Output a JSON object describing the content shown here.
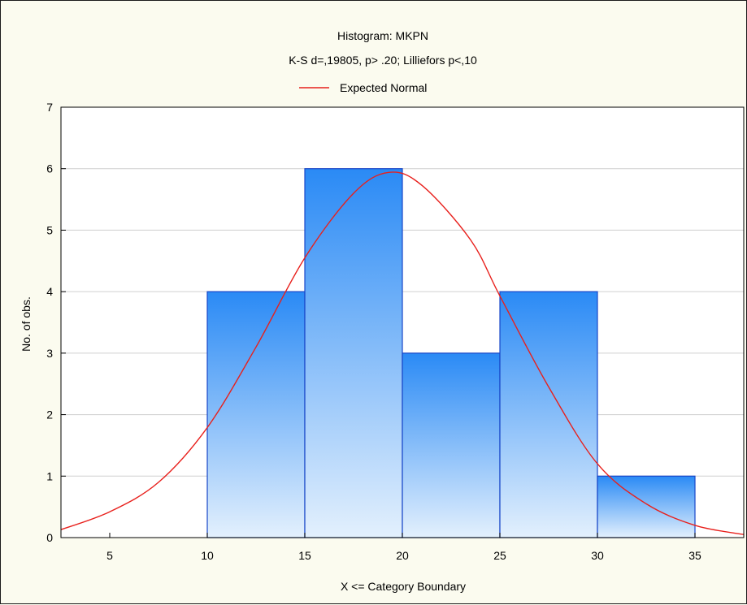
{
  "chart_data": {
    "type": "bar",
    "title": "Histogram: MKPN",
    "subtitle": "K-S d=,19805, p> .20; Lilliefors p<,10",
    "legend": [
      {
        "name": "Expected Normal",
        "color": "#e8201c",
        "marker": "line"
      }
    ],
    "legend_placement": "top-center",
    "xlabel": "X <= Category Boundary",
    "ylabel": "No. of obs.",
    "xlim": [
      2.5,
      37.5
    ],
    "ylim": [
      0,
      7
    ],
    "x_ticks": [
      5,
      10,
      15,
      20,
      25,
      30,
      35
    ],
    "y_ticks": [
      0,
      1,
      2,
      3,
      4,
      5,
      6,
      7
    ],
    "grid": true,
    "bins": [
      {
        "from": 10,
        "to": 15,
        "count": 4
      },
      {
        "from": 15,
        "to": 20,
        "count": 6
      },
      {
        "from": 20,
        "to": 25,
        "count": 3
      },
      {
        "from": 25,
        "to": 30,
        "count": 4
      },
      {
        "from": 30,
        "to": 35,
        "count": 1
      }
    ],
    "series": [
      {
        "name": "Expected Normal",
        "type": "line",
        "color": "#e8201c",
        "x": [
          2.5,
          5,
          7.5,
          10,
          12.5,
          15,
          17.5,
          19.3,
          21,
          23.5,
          25,
          27.5,
          30,
          32.5,
          35,
          37.5
        ],
        "values": [
          0.13,
          0.42,
          0.9,
          1.79,
          3.1,
          4.55,
          5.6,
          5.94,
          5.73,
          4.84,
          3.93,
          2.45,
          1.2,
          0.55,
          0.2,
          0.05
        ]
      }
    ],
    "colors": {
      "bar_top": "#2a8af5",
      "bar_bottom": "#e3f0fd",
      "bar_stroke": "#1846c8",
      "curve": "#e8201c",
      "grid": "#cfcfcf",
      "plot_bg": "#ffffff",
      "page_bg": "#fbfbef"
    }
  }
}
